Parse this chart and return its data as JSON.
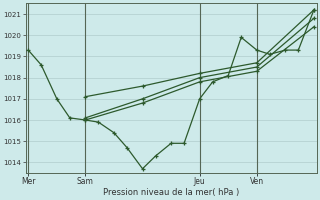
{
  "background_color": "#ceeaea",
  "grid_color": "#b0cccc",
  "line_color": "#2d5a2d",
  "ylim": [
    1013.5,
    1021.5
  ],
  "yticks": [
    1014,
    1015,
    1016,
    1017,
    1018,
    1019,
    1020,
    1021
  ],
  "xlabel": "Pression niveau de la mer( hPa )",
  "day_labels": [
    "Mer",
    "Sam",
    "Jeu",
    "Ven"
  ],
  "day_positions": [
    0,
    22,
    66,
    88
  ],
  "total_points": 110,
  "vline_positions": [
    0,
    22,
    66,
    88
  ],
  "series0": {
    "x": [
      0,
      5,
      11,
      16,
      22,
      27,
      33,
      38,
      44,
      49,
      55,
      60,
      66,
      71,
      77,
      82,
      88,
      93,
      99,
      104,
      110
    ],
    "y": [
      1019.3,
      1018.6,
      1017.0,
      1016.1,
      1016.0,
      1015.9,
      1015.4,
      1014.7,
      1013.7,
      1014.3,
      1014.9,
      1014.9,
      1017.0,
      1017.8,
      1018.1,
      1019.9,
      1019.3,
      1019.1,
      1019.3,
      1019.3,
      1021.2
    ]
  },
  "series1": {
    "x": [
      22,
      44,
      66,
      88,
      110
    ],
    "y": [
      1017.1,
      1017.6,
      1018.2,
      1018.7,
      1021.2
    ]
  },
  "series2": {
    "x": [
      22,
      44,
      66,
      88,
      110
    ],
    "y": [
      1016.1,
      1017.0,
      1018.0,
      1018.5,
      1020.8
    ]
  },
  "series3": {
    "x": [
      22,
      44,
      66,
      88,
      110
    ],
    "y": [
      1016.0,
      1016.8,
      1017.8,
      1018.3,
      1020.4
    ]
  }
}
